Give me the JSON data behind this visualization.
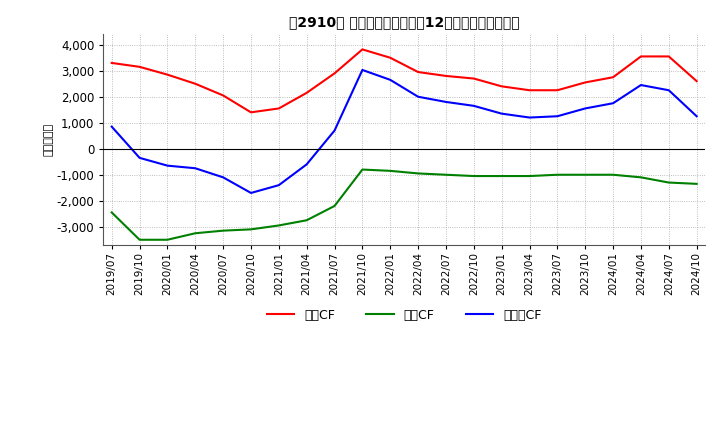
{
  "title": "、2910、 キャッシュフローの12か月移動合計の推移",
  "ylabel": "（百万円）",
  "ylim": [
    -3700,
    4400
  ],
  "yticks": [
    -3000,
    -2000,
    -1000,
    0,
    1000,
    2000,
    3000,
    4000
  ],
  "dates": [
    "2019/07",
    "2019/10",
    "2020/01",
    "2020/04",
    "2020/07",
    "2020/10",
    "2021/01",
    "2021/04",
    "2021/07",
    "2021/10",
    "2022/01",
    "2022/04",
    "2022/07",
    "2022/10",
    "2023/01",
    "2023/04",
    "2023/07",
    "2023/10",
    "2024/01",
    "2024/04",
    "2024/07",
    "2024/10"
  ],
  "operating_cf": [
    3300,
    3150,
    2850,
    2500,
    2050,
    1400,
    1550,
    2150,
    2900,
    3820,
    3500,
    2950,
    2800,
    2700,
    2400,
    2250,
    2250,
    2550,
    2750,
    3550,
    3550,
    2600
  ],
  "investing_cf": [
    -2450,
    -3500,
    -3500,
    -3250,
    -3150,
    -3100,
    -2950,
    -2750,
    -2200,
    -800,
    -850,
    -950,
    -1000,
    -1050,
    -1050,
    -1050,
    -1000,
    -1000,
    -1000,
    -1100,
    -1300,
    -1350
  ],
  "free_cf": [
    850,
    -350,
    -650,
    -750,
    -1100,
    -1700,
    -1400,
    -600,
    700,
    3030,
    2650,
    2000,
    1800,
    1650,
    1350,
    1200,
    1250,
    1550,
    1750,
    2450,
    2250,
    1250
  ],
  "operating_color": "#FF0000",
  "investing_color": "#008000",
  "free_color": "#0000FF",
  "background_color": "#ffffff",
  "grid_color": "#aaaaaa",
  "legend_labels": [
    "営業CF",
    "投資CF",
    "フリーCF"
  ]
}
